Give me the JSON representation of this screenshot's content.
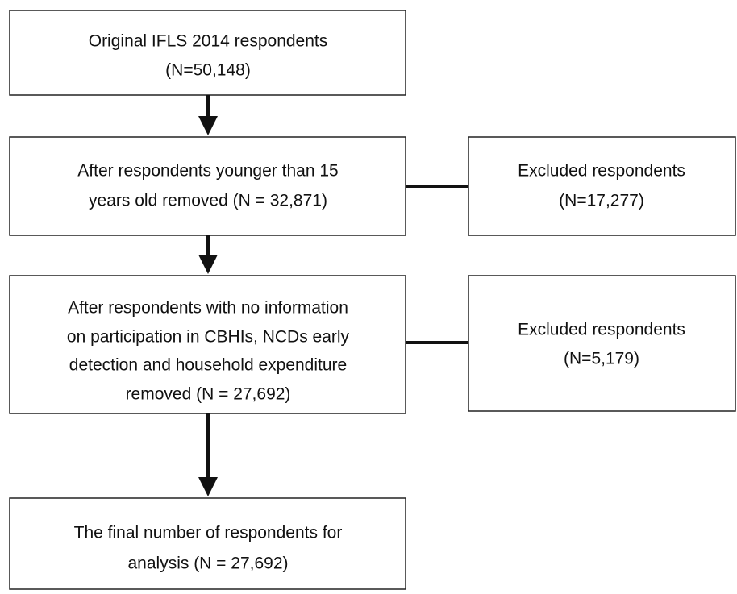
{
  "nodes": [
    {
      "lines": [
        "Original IFLS 2014 respondents",
        "(N=50,148)"
      ]
    },
    {
      "lines": [
        "After respondents  younger than 15",
        "years old removed (N = 32,871)"
      ]
    },
    {
      "lines": [
        "After respondents with no information",
        "on participation in CBHIs, NCDs early",
        "detection and household expenditure",
        "removed (N = 27,692)"
      ]
    },
    {
      "lines": [
        "The final number of respondents  for",
        "analysis (N = 27,692)"
      ]
    },
    {
      "lines": [
        "Excluded respondents",
        "(N=17,277)"
      ]
    },
    {
      "lines": [
        "Excluded respondents",
        "(N=5,179)"
      ]
    }
  ]
}
